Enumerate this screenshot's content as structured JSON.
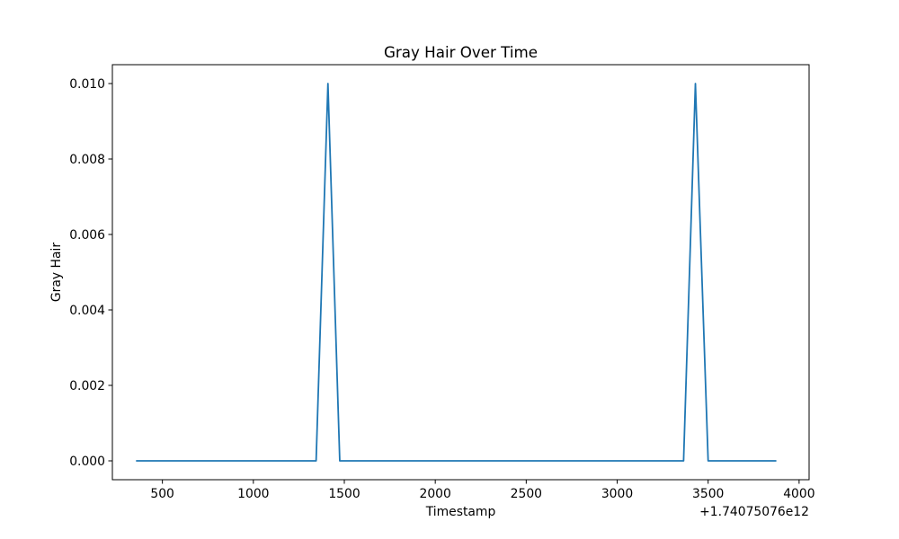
{
  "chart_data": {
    "type": "line",
    "title": "Gray Hair Over Time",
    "xlabel": "Timestamp",
    "ylabel": "Gray Hair",
    "x_offset_label": "+1.74075076e12",
    "xlim": [
      225,
      4055
    ],
    "ylim": [
      -0.0005,
      0.0105
    ],
    "x_ticks": [
      500,
      1000,
      1500,
      2000,
      2500,
      3000,
      3500,
      4000
    ],
    "x_tick_labels": [
      "500",
      "1000",
      "1500",
      "2000",
      "2500",
      "3000",
      "3500",
      "4000"
    ],
    "y_ticks": [
      0.0,
      0.002,
      0.004,
      0.006,
      0.008,
      0.01
    ],
    "y_tick_labels": [
      "0.000",
      "0.002",
      "0.004",
      "0.006",
      "0.008",
      "0.010"
    ],
    "grid": false,
    "series": [
      {
        "color": "#1f77b4",
        "x": [
          355,
          1345,
          1410,
          1475,
          3365,
          3430,
          3500,
          3875
        ],
        "y": [
          0,
          0,
          0.01,
          0,
          0,
          0.01,
          0,
          0
        ]
      }
    ]
  }
}
